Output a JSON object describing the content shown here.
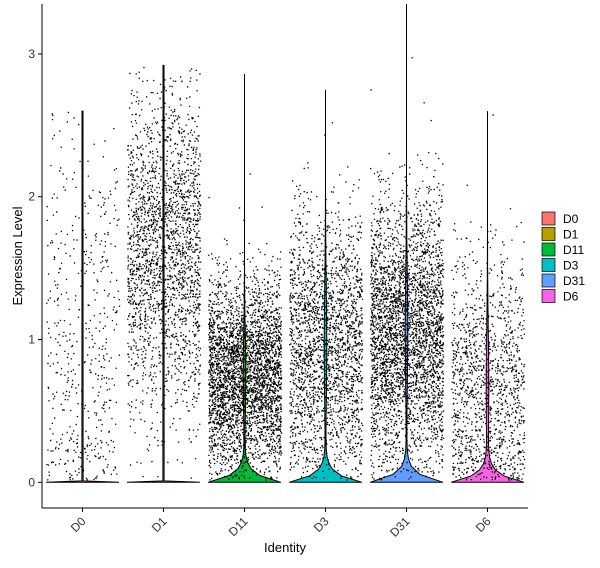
{
  "chart_data": {
    "type": "violin",
    "xlabel": "Identity",
    "ylabel": "Expression Level",
    "categories": [
      "D0",
      "D1",
      "D11",
      "D3",
      "D31",
      "D6"
    ],
    "ylim": [
      -0.18,
      3.35
    ],
    "yticks": [
      0,
      1,
      2,
      3
    ],
    "grid": false,
    "legend_position": "right",
    "series": [
      {
        "name": "D0",
        "color": "#F8766D",
        "max": 2.6,
        "points": 500,
        "zero_fraction": 0.0,
        "mode": 0.9,
        "spread": 0.75
      },
      {
        "name": "D1",
        "color": "#B79F00",
        "max": 2.92,
        "points": 2200,
        "zero_fraction": 0.0,
        "mode": 1.6,
        "spread": 0.55
      },
      {
        "name": "D11",
        "color": "#00BA38",
        "max": 2.86,
        "points": 4200,
        "zero_fraction": 0.3,
        "mode": 0.75,
        "spread": 0.33
      },
      {
        "name": "D3",
        "color": "#00BFC4",
        "max": 2.75,
        "points": 2300,
        "zero_fraction": 0.25,
        "mode": 0.95,
        "spread": 0.45
      },
      {
        "name": "D31",
        "color": "#619CFF",
        "max": 3.35,
        "points": 5200,
        "zero_fraction": 0.25,
        "mode": 1.05,
        "spread": 0.45
      },
      {
        "name": "D6",
        "color": "#F564E3",
        "max": 2.6,
        "points": 1300,
        "zero_fraction": 0.3,
        "mode": 0.65,
        "spread": 0.45
      }
    ]
  }
}
